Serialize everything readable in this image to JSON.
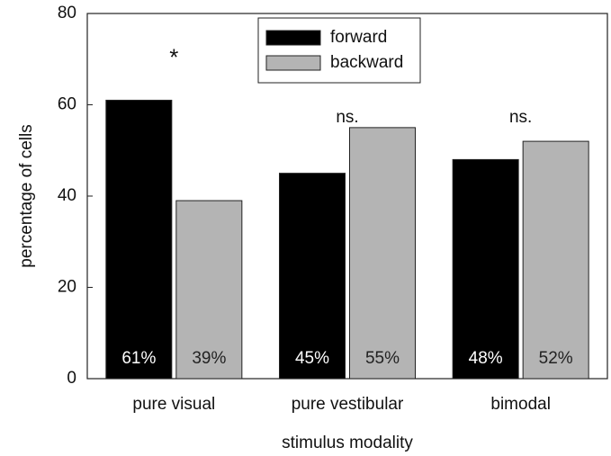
{
  "chart_data": {
    "type": "bar",
    "x_label": "stimulus modality",
    "y_label": "percentage of cells",
    "categories": [
      "pure visual",
      "pure vestibular",
      "bimodal"
    ],
    "series": [
      {
        "name": "forward",
        "color": "#000000",
        "values": [
          61,
          45,
          48
        ],
        "value_labels": [
          "61%",
          "45%",
          "48%"
        ]
      },
      {
        "name": "backward",
        "color": "#b4b4b4",
        "values": [
          39,
          55,
          52
        ],
        "value_labels": [
          "39%",
          "55%",
          "52%"
        ]
      }
    ],
    "annotations": [
      "*",
      "ns.",
      "ns."
    ],
    "ylim": [
      0,
      80
    ],
    "yticks": [
      0,
      20,
      40,
      60,
      80
    ],
    "legend": "top-center"
  }
}
